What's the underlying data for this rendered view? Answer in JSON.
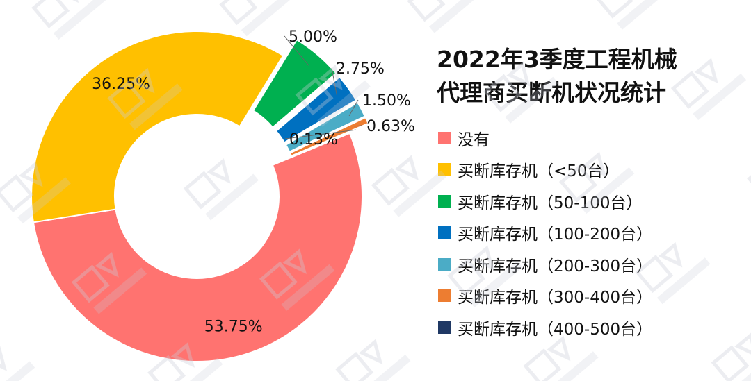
{
  "chart_data": {
    "type": "pie",
    "donut": true,
    "title_lines": [
      "2022年3季度工程机械",
      "代理商买断机状况统计"
    ],
    "series": [
      {
        "name": "没有",
        "value": 53.75,
        "label": "53.75%",
        "color": "#FF7370"
      },
      {
        "name": "买断库存机（<50台）",
        "value": 36.25,
        "label": "36.25%",
        "color": "#FFC000"
      },
      {
        "name": "买断库存机（50-100台）",
        "value": 5.0,
        "label": "5.00%",
        "color": "#00B050"
      },
      {
        "name": "买断库存机（100-200台）",
        "value": 2.75,
        "label": "2.75%",
        "color": "#0070C0"
      },
      {
        "name": "买断库存机（200-300台）",
        "value": 1.5,
        "label": "1.50%",
        "color": "#4BACC6"
      },
      {
        "name": "买断库存机（300-400台）",
        "value": 0.63,
        "label": "0.63%",
        "color": "#ED7D31"
      },
      {
        "name": "买断库存机（400-500台）",
        "value": 0.13,
        "label": "0.13%",
        "color": "#1F3864"
      }
    ],
    "legend_position": "right"
  }
}
